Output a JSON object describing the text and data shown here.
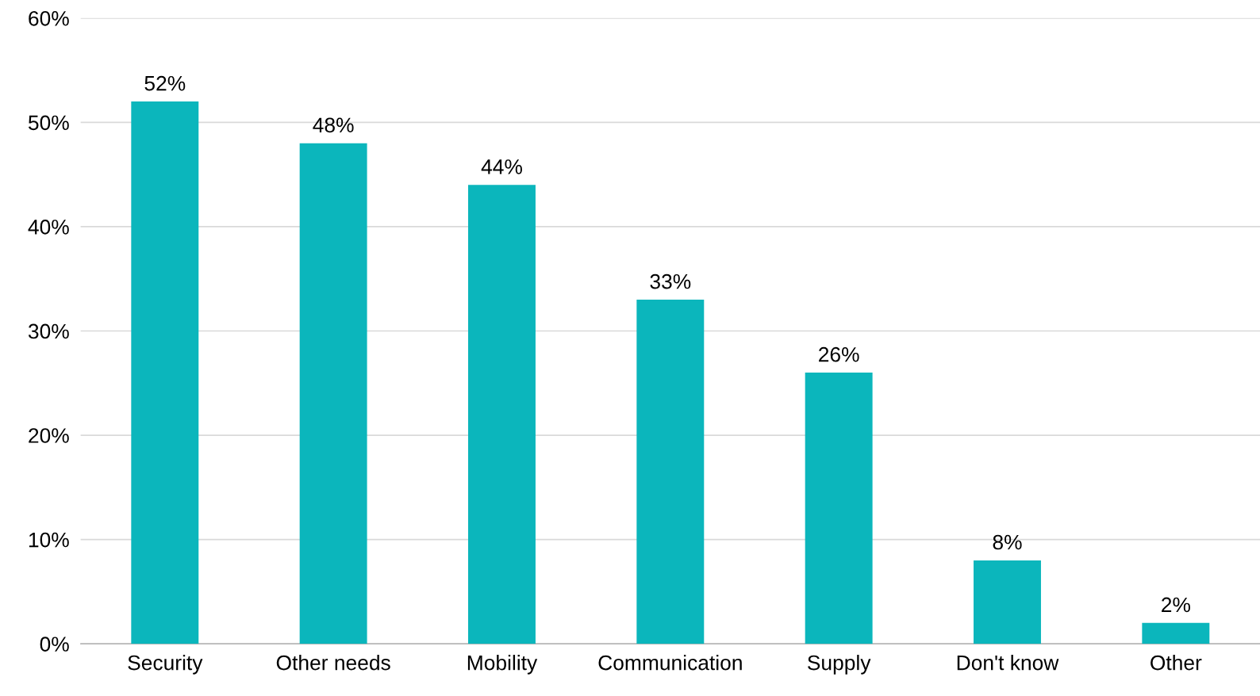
{
  "chart_data": {
    "type": "bar",
    "categories": [
      "Security",
      "Other needs",
      "Mobility",
      "Communication",
      "Supply",
      "Don't know",
      "Other"
    ],
    "values": [
      52,
      48,
      44,
      33,
      26,
      8,
      2
    ],
    "value_labels": [
      "52%",
      "48%",
      "44%",
      "33%",
      "26%",
      "8%",
      "2%"
    ],
    "color": "#0bb6bc",
    "ylim": [
      0,
      60
    ],
    "yticks": [
      {
        "value": 0,
        "label": "0%"
      },
      {
        "value": 10,
        "label": "10%"
      },
      {
        "value": 20,
        "label": "20%"
      },
      {
        "value": 30,
        "label": "30%"
      },
      {
        "value": 40,
        "label": "40%"
      },
      {
        "value": 50,
        "label": "50%"
      },
      {
        "value": 60,
        "label": "60%"
      }
    ],
    "grid": "y",
    "legend": false
  }
}
